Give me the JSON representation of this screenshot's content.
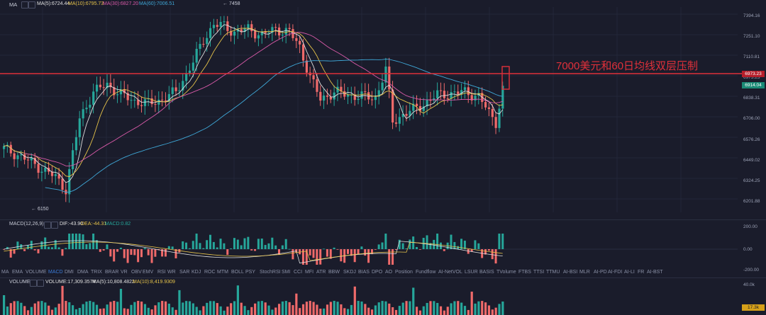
{
  "main": {
    "indicator_name": "MA",
    "ma5": "MA(5):6724.44",
    "ma10": "MA(10):6795.73",
    "ma30": "MA(30):6827.20",
    "ma60": "MA(60):7006.51",
    "high_label": "7458",
    "low_label": "6150",
    "annotation": "7000美元和60日均线双层压制",
    "current_price": "6914.04",
    "price_axis": [
      "7394.16",
      "7251.10",
      "7110.81",
      "6973.23",
      "6838.31",
      "6706.00",
      "6576.26",
      "6449.02",
      "6324.25",
      "6201.88"
    ]
  },
  "macd": {
    "name": "MACD(12,26,9)",
    "dif": "DIF:-43.90",
    "dea": "DEA:-44.31",
    "macd": "MACD:0.82",
    "axis": [
      "200.00",
      "0.00",
      "-200.00"
    ]
  },
  "indicator_tabs": [
    "MA",
    "EMA",
    "VOLUME",
    "MACD",
    "DMI",
    "DMA",
    "TRIX",
    "BRAR",
    "VR",
    "OBV",
    "EMV",
    "RSI",
    "WR",
    "SAR",
    "KDJ",
    "ROC",
    "MTM",
    "BOLL",
    "PSY",
    "StochRSI",
    "SMI",
    "CCI",
    "MFI",
    "ATR",
    "BBW",
    "SKDJ",
    "BIAS",
    "DPO",
    "AO",
    "Position",
    "Fundflow",
    "AI-NetVOL",
    "LSUR",
    "BASIS",
    "TVolume",
    "FTBS",
    "TTSI",
    "TTMU",
    "AI-BSI",
    "MLR",
    "AI-PD",
    "AI-FDI",
    "AI-LI",
    "FR",
    "AI-BST"
  ],
  "active_tab": "MACD",
  "volume": {
    "name": "VOLUME",
    "value": "VOLUME:17,309.3574",
    "ma5": "MA(5):10,808.4822",
    "ma10": "MA(10):8,419.9309",
    "axis_top": "40.0k",
    "current": "17.3k"
  },
  "colors": {
    "up": "#26a69a",
    "down": "#ef6a6a",
    "ma5": "#e0e0e0",
    "ma10": "#e6c34a",
    "ma30": "#d85aa8",
    "ma60": "#3fa8d8",
    "resistance": "#e0303a",
    "bg": "#1a1c2b"
  }
}
